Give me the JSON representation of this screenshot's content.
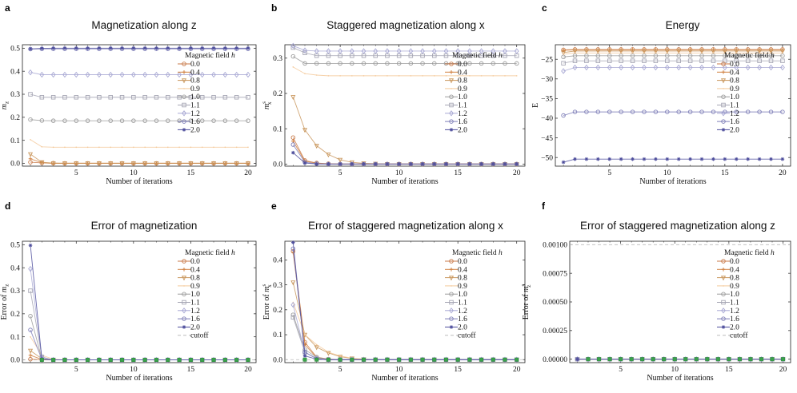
{
  "legend_title": "Magnetic field",
  "legend_symbol": "h",
  "series_meta": [
    {
      "name": "0.0",
      "color": "#c87a4a",
      "marker": "circle"
    },
    {
      "name": "0.4",
      "color": "#d08040",
      "marker": "plus"
    },
    {
      "name": "0.8",
      "color": "#c9975d",
      "marker": "triangle"
    },
    {
      "name": "0.9",
      "color": "#f4c99a",
      "marker": "none"
    },
    {
      "name": "1.0",
      "color": "#9c9c9c",
      "marker": "circle"
    },
    {
      "name": "1.1",
      "color": "#a6a6b4",
      "marker": "square"
    },
    {
      "name": "1.2",
      "color": "#a9a9d4",
      "marker": "diamond"
    },
    {
      "name": "1.6",
      "color": "#7f7fb8",
      "marker": "circle"
    },
    {
      "name": "2.0",
      "color": "#4e4e9c",
      "marker": "star"
    }
  ],
  "cutoff": {
    "label": "cutoff",
    "color": "#bbbbbb"
  },
  "chart_data": [
    {
      "panel": "a",
      "type": "line",
      "title": "Magnetization along z",
      "xlabel": "Number of iterations",
      "ylabel": "m_z",
      "xlim": [
        0.3,
        20.7
      ],
      "ylim": [
        -0.012,
        0.515
      ],
      "xticks": [
        5,
        10,
        15,
        20
      ],
      "xtick_labels": [
        "5",
        "10",
        "15",
        "20"
      ],
      "yticks": [
        0,
        0.1,
        0.2,
        0.3,
        0.4,
        0.5
      ],
      "ytick_labels": [
        "0.0",
        "0.1",
        "0.2",
        "0.3",
        "0.4",
        "0.5"
      ],
      "x": [
        1,
        2,
        3,
        4,
        5,
        6,
        7,
        8,
        9,
        10,
        11,
        12,
        13,
        14,
        15,
        16,
        17,
        18,
        19,
        20
      ],
      "series": [
        {
          "name": "0.0",
          "first": [
            0.005,
            0.002,
            0.001
          ],
          "tail": 0.0
        },
        {
          "name": "0.4",
          "first": [
            0.02,
            0.003
          ],
          "tail": 0.0
        },
        {
          "name": "0.8",
          "first": [
            0.04,
            0.005
          ],
          "tail": 0.001
        },
        {
          "name": "0.9",
          "first": [
            0.103,
            0.072
          ],
          "tail": 0.07
        },
        {
          "name": "1.0",
          "first": [
            0.19,
            0.186
          ],
          "tail": 0.185
        },
        {
          "name": "1.1",
          "first": [
            0.3,
            0.287
          ],
          "tail": 0.287
        },
        {
          "name": "1.2",
          "first": [
            0.395,
            0.385
          ],
          "tail": 0.385
        },
        {
          "name": "1.6",
          "first": [
            0.496,
            0.497
          ],
          "tail": 0.497
        },
        {
          "name": "2.0",
          "first": [
            0.497,
            0.499
          ],
          "tail": 0.5
        }
      ]
    },
    {
      "panel": "b",
      "type": "line",
      "title": "Staggered magnetization along x",
      "xlabel": "Number of iterations",
      "ylabel": "m_x^s",
      "xlim": [
        0.3,
        20.7
      ],
      "ylim": [
        -0.006,
        0.338
      ],
      "xticks": [
        5,
        10,
        15,
        20
      ],
      "xtick_labels": [
        "5",
        "10",
        "15",
        "20"
      ],
      "yticks": [
        0,
        0.1,
        0.2,
        0.3
      ],
      "ytick_labels": [
        "0.0",
        "0.1",
        "0.2",
        "0.3"
      ],
      "x": [
        1,
        2,
        3,
        4,
        5,
        6,
        7,
        8,
        9,
        10,
        11,
        12,
        13,
        14,
        15,
        16,
        17,
        18,
        19,
        20
      ],
      "series": [
        {
          "name": "0.0",
          "first": [
            0.075,
            0.01,
            0.003,
            0.001
          ],
          "tail": 0.0
        },
        {
          "name": "0.4",
          "first": [
            0.065,
            0.008,
            0.002
          ],
          "tail": 0.0
        },
        {
          "name": "0.8",
          "first": [
            0.19,
            0.097,
            0.052,
            0.027,
            0.012,
            0.005,
            0.002,
            0.001
          ],
          "tail": 0.0
        },
        {
          "name": "0.9",
          "first": [
            0.275,
            0.256,
            0.252
          ],
          "tail": 0.25
        },
        {
          "name": "1.0",
          "first": [
            0.305,
            0.285,
            0.285
          ],
          "tail": 0.285
        },
        {
          "name": "1.1",
          "first": [
            0.33,
            0.315,
            0.307
          ],
          "tail": 0.307
        },
        {
          "name": "1.2",
          "first": [
            0.335,
            0.322,
            0.32
          ],
          "tail": 0.32
        },
        {
          "name": "1.6",
          "first": [
            0.055,
            0.005,
            0.001
          ],
          "tail": 0.0
        },
        {
          "name": "2.0",
          "first": [
            0.032,
            0.003
          ],
          "tail": 0.0
        }
      ]
    },
    {
      "panel": "c",
      "type": "line",
      "title": "Energy",
      "xlabel": "Number of iterations",
      "ylabel": "E",
      "xlim": [
        0.3,
        20.7
      ],
      "ylim": [
        -52.2,
        -21.3
      ],
      "xticks": [
        5,
        10,
        15,
        20
      ],
      "xtick_labels": [
        "5",
        "10",
        "15",
        "20"
      ],
      "yticks": [
        -50,
        -45,
        -40,
        -35,
        -30,
        -25
      ],
      "ytick_labels": [
        "−50",
        "−45",
        "−40",
        "−35",
        "−30",
        "−25"
      ],
      "x": [
        1,
        2,
        3,
        4,
        5,
        6,
        7,
        8,
        9,
        10,
        11,
        12,
        13,
        14,
        15,
        16,
        17,
        18,
        19,
        20
      ],
      "series": [
        {
          "name": "0.0",
          "first": [
            -22.6,
            -22.5
          ],
          "tail": -22.5
        },
        {
          "name": "0.4",
          "first": [
            -22.7,
            -22.6
          ],
          "tail": -22.6
        },
        {
          "name": "0.8",
          "first": [
            -23.3,
            -22.9
          ],
          "tail": -22.9
        },
        {
          "name": "0.9",
          "first": [
            -23.7,
            -23.4
          ],
          "tail": -23.4
        },
        {
          "name": "1.0",
          "first": [
            -24.4,
            -24.1
          ],
          "tail": -24.1
        },
        {
          "name": "1.1",
          "first": [
            -26.0,
            -25.4
          ],
          "tail": -25.4
        },
        {
          "name": "1.2",
          "first": [
            -28.0,
            -27.1
          ],
          "tail": -27.1
        },
        {
          "name": "1.6",
          "first": [
            -39.3,
            -38.4
          ],
          "tail": -38.4
        },
        {
          "name": "2.0",
          "first": [
            -51.2,
            -50.4
          ],
          "tail": -50.4
        }
      ]
    },
    {
      "panel": "d",
      "type": "line",
      "title": "Error of magnetization",
      "xlabel": "Number of iterations",
      "ylabel": "Error of m_z",
      "xlim": [
        0.3,
        20.7
      ],
      "ylim": [
        -0.012,
        0.515
      ],
      "xticks": [
        5,
        10,
        15,
        20
      ],
      "xtick_labels": [
        "5",
        "10",
        "15",
        "20"
      ],
      "yticks": [
        0,
        0.1,
        0.2,
        0.3,
        0.4,
        0.5
      ],
      "ytick_labels": [
        "0.0",
        "0.1",
        "0.2",
        "0.3",
        "0.4",
        "0.5"
      ],
      "cutoff": 0.0001,
      "x": [
        1,
        2,
        3,
        4,
        5,
        6,
        7,
        8,
        9,
        10,
        11,
        12,
        13,
        14,
        15,
        16,
        17,
        18,
        19,
        20
      ],
      "series": [
        {
          "name": "0.0",
          "first": [
            0.003,
            0.001
          ],
          "tail": 0.0
        },
        {
          "name": "0.4",
          "first": [
            0.02,
            0.002
          ],
          "tail": 0.0
        },
        {
          "name": "0.8",
          "first": [
            0.04,
            0.005
          ],
          "tail": 0.0
        },
        {
          "name": "0.9",
          "first": [
            0.1,
            0.02,
            0.003
          ],
          "tail": 0.0
        },
        {
          "name": "1.0",
          "first": [
            0.19,
            0.005
          ],
          "tail": 0.0
        },
        {
          "name": "1.1",
          "first": [
            0.3,
            0.013
          ],
          "tail": 0.0
        },
        {
          "name": "1.2",
          "first": [
            0.395,
            0.01
          ],
          "tail": 0.0
        },
        {
          "name": "1.6",
          "first": [
            0.13,
            0.002
          ],
          "tail": 0.0
        },
        {
          "name": "2.0",
          "first": [
            0.497,
            0.003
          ],
          "tail": 0.0
        }
      ]
    },
    {
      "panel": "e",
      "type": "line",
      "title": "Error of staggered magnetization along x",
      "xlabel": "Number of iterations",
      "ylabel": "Error of m_x^s",
      "xlim": [
        0.3,
        20.7
      ],
      "ylim": [
        -0.012,
        0.475
      ],
      "xticks": [
        5,
        10,
        15,
        20
      ],
      "xtick_labels": [
        "5",
        "10",
        "15",
        "20"
      ],
      "yticks": [
        0,
        0.1,
        0.2,
        0.3,
        0.4
      ],
      "ytick_labels": [
        "0.0",
        "0.1",
        "0.2",
        "0.3",
        "0.4"
      ],
      "cutoff": 0.0001,
      "x": [
        1,
        2,
        3,
        4,
        5,
        6,
        7,
        8,
        9,
        10,
        11,
        12,
        13,
        14,
        15,
        16,
        17,
        18,
        19,
        20
      ],
      "series": [
        {
          "name": "0.0",
          "first": [
            0.435,
            0.07,
            0.01,
            0.002
          ],
          "tail": 0.0
        },
        {
          "name": "0.4",
          "first": [
            0.43,
            0.06,
            0.008
          ],
          "tail": 0.0
        },
        {
          "name": "0.8",
          "first": [
            0.31,
            0.1,
            0.05,
            0.027,
            0.012,
            0.005,
            0.002
          ],
          "tail": 0.0
        },
        {
          "name": "0.9",
          "first": [
            0.23,
            0.1,
            0.06,
            0.03,
            0.015,
            0.006,
            0.002
          ],
          "tail": 0.0
        },
        {
          "name": "1.0",
          "first": [
            0.18,
            0.04,
            0.01
          ],
          "tail": 0.0
        },
        {
          "name": "1.1",
          "first": [
            0.17,
            0.03,
            0.005
          ],
          "tail": 0.0
        },
        {
          "name": "1.2",
          "first": [
            0.22,
            0.03,
            0.004
          ],
          "tail": 0.0
        },
        {
          "name": "1.6",
          "first": [
            0.445,
            0.03,
            0.003
          ],
          "tail": 0.0
        },
        {
          "name": "2.0",
          "first": [
            0.47,
            0.015,
            0.002
          ],
          "tail": 0.0
        }
      ]
    },
    {
      "panel": "f",
      "type": "line",
      "title": "Error of staggered magnetization along z",
      "xlabel": "Number of iterations",
      "ylabel": "Error of m_z^s",
      "xlim": [
        0.3,
        20.7
      ],
      "ylim": [
        -3e-05,
        0.00103
      ],
      "xticks": [
        5,
        10,
        15,
        20
      ],
      "xtick_labels": [
        "5",
        "10",
        "15",
        "20"
      ],
      "yticks": [
        0,
        0.00025,
        0.0005,
        0.00075,
        0.001
      ],
      "ytick_labels": [
        "0.00000",
        "0.00025",
        "0.00050",
        "0.00075",
        "0.00100"
      ],
      "cutoff": 0.001,
      "x": [
        1,
        2,
        3,
        4,
        5,
        6,
        7,
        8,
        9,
        10,
        11,
        12,
        13,
        14,
        15,
        16,
        17,
        18,
        19,
        20
      ],
      "series": [
        {
          "name": "0.0",
          "first": [],
          "tail": 0.0
        },
        {
          "name": "0.4",
          "first": [],
          "tail": 0.0
        },
        {
          "name": "0.8",
          "first": [],
          "tail": 0.0
        },
        {
          "name": "0.9",
          "first": [],
          "tail": 0.0
        },
        {
          "name": "1.0",
          "first": [],
          "tail": 0.0
        },
        {
          "name": "1.1",
          "first": [],
          "tail": 0.0
        },
        {
          "name": "1.2",
          "first": [],
          "tail": 0.0
        },
        {
          "name": "1.6",
          "first": [],
          "tail": 0.0
        },
        {
          "name": "2.0",
          "first": [],
          "tail": 0.0
        }
      ]
    }
  ]
}
